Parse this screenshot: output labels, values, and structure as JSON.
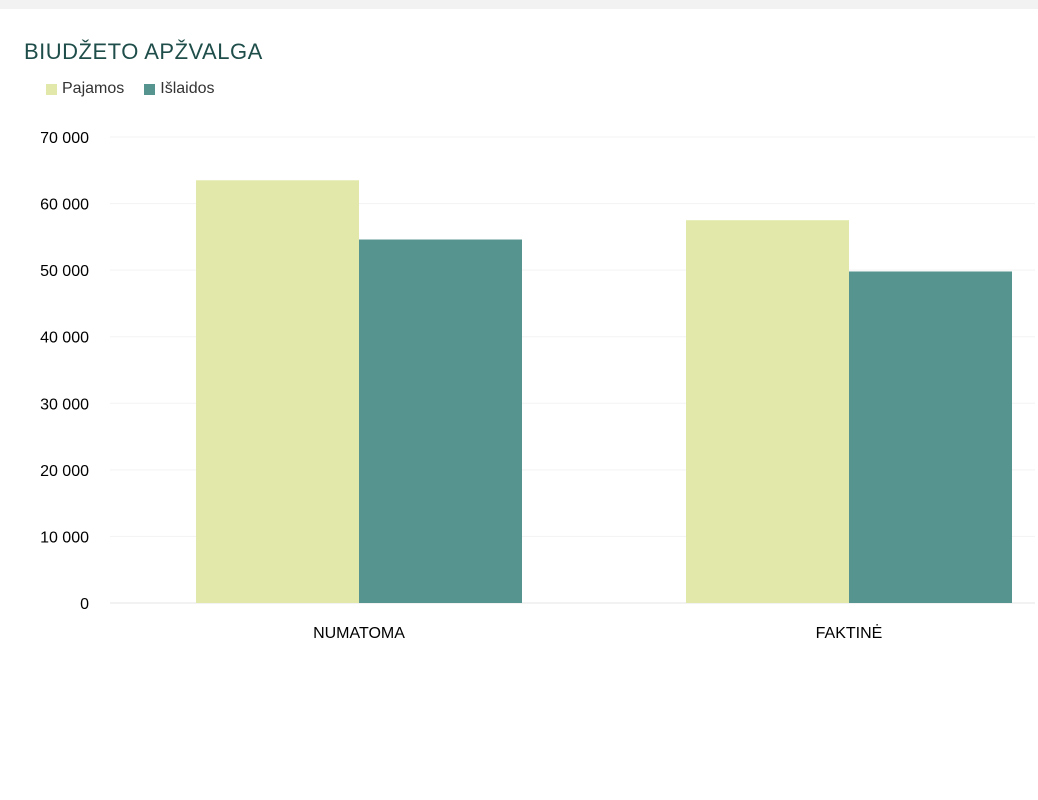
{
  "chart_data": {
    "type": "bar",
    "title": "BIUDŽETO APŽVALGA",
    "categories": [
      "NUMATOMA",
      "FAKTINĖ"
    ],
    "series": [
      {
        "name": "Pajamos",
        "values": [
          63500,
          57500
        ],
        "color": "#e2e8aa"
      },
      {
        "name": "Išlaidos",
        "values": [
          54600,
          49800
        ],
        "color": "#55948f"
      }
    ],
    "ylim": [
      0,
      70000
    ],
    "yticks": [
      0,
      10000,
      20000,
      30000,
      40000,
      50000,
      60000,
      70000
    ],
    "ytick_labels": [
      "0",
      "10 000",
      "20 000",
      "30 000",
      "40 000",
      "50 000",
      "60 000",
      "70 000"
    ],
    "grid": true,
    "legend_position": "top-left",
    "xlabel": "",
    "ylabel": ""
  }
}
